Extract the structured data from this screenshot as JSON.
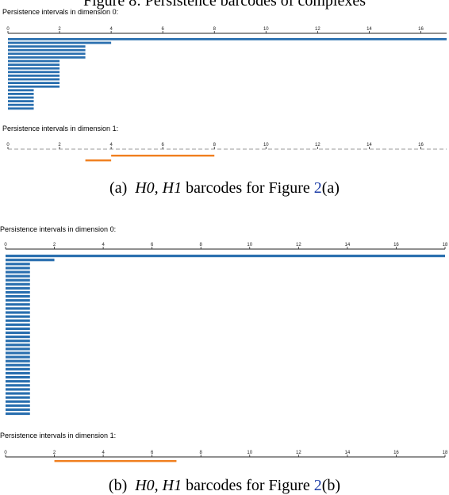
{
  "top_clipped_text": "Figure 8: Persistence barcodes of complexes",
  "panel_a": {
    "caption_label": "(a)",
    "caption_math": "H0, H1",
    "caption_text": "barcodes for Figure",
    "caption_ref": "2",
    "caption_suffix": "(a)"
  },
  "panel_b": {
    "caption_label": "(b)",
    "caption_math": "H0, H1",
    "caption_text": "barcodes for Figure",
    "caption_ref": "2",
    "caption_suffix": "(b)"
  },
  "chart_data": [
    {
      "type": "bar",
      "title": "Persistence intervals in dimension 0:",
      "xlim": [
        0,
        17
      ],
      "ticks": [
        "0",
        "2",
        "4",
        "6",
        "8",
        "10",
        "12",
        "14",
        "16"
      ],
      "color": "#2a6faf",
      "bars": [
        [
          0,
          17
        ],
        [
          0,
          4
        ],
        [
          0,
          3
        ],
        [
          0,
          3
        ],
        [
          0,
          3
        ],
        [
          0,
          3
        ],
        [
          0,
          2
        ],
        [
          0,
          2
        ],
        [
          0,
          2
        ],
        [
          0,
          2
        ],
        [
          0,
          2
        ],
        [
          0,
          2
        ],
        [
          0,
          2
        ],
        [
          0,
          2
        ],
        [
          0,
          1
        ],
        [
          0,
          1
        ],
        [
          0,
          1
        ],
        [
          0,
          1
        ],
        [
          0,
          1
        ],
        [
          0,
          1
        ]
      ]
    },
    {
      "type": "bar",
      "title": "Persistence intervals in dimension 1:",
      "xlim": [
        0,
        17
      ],
      "ticks": [
        "0",
        "2",
        "4",
        "6",
        "8",
        "10",
        "12",
        "14",
        "16"
      ],
      "color": "#f07f1f",
      "bars": [
        [
          4,
          8
        ],
        [
          3,
          4
        ]
      ]
    },
    {
      "type": "bar",
      "title": "Persistence intervals in dimension 0:",
      "xlim": [
        0,
        18
      ],
      "ticks": [
        "0",
        "2",
        "4",
        "6",
        "8",
        "10",
        "12",
        "14",
        "16",
        "18"
      ],
      "color": "#2a6faf",
      "bars": [
        [
          0,
          18
        ],
        [
          0,
          2
        ],
        [
          0,
          1
        ],
        [
          0,
          1
        ],
        [
          0,
          1
        ],
        [
          0,
          1
        ],
        [
          0,
          1
        ],
        [
          0,
          1
        ],
        [
          0,
          1
        ],
        [
          0,
          1
        ],
        [
          0,
          1
        ],
        [
          0,
          1
        ],
        [
          0,
          1
        ],
        [
          0,
          1
        ],
        [
          0,
          1
        ],
        [
          0,
          1
        ],
        [
          0,
          1
        ],
        [
          0,
          1
        ],
        [
          0,
          1
        ],
        [
          0,
          1
        ],
        [
          0,
          1
        ],
        [
          0,
          1
        ],
        [
          0,
          1
        ],
        [
          0,
          1
        ],
        [
          0,
          1
        ],
        [
          0,
          1
        ],
        [
          0,
          1
        ],
        [
          0,
          1
        ],
        [
          0,
          1
        ],
        [
          0,
          1
        ],
        [
          0,
          1
        ],
        [
          0,
          1
        ],
        [
          0,
          1
        ],
        [
          0,
          1
        ],
        [
          0,
          1
        ],
        [
          0,
          1
        ],
        [
          0,
          1
        ],
        [
          0,
          1
        ],
        [
          0,
          1
        ],
        [
          0,
          1
        ]
      ]
    },
    {
      "type": "bar",
      "title": "Persistence intervals in dimension 1:",
      "xlim": [
        0,
        18
      ],
      "ticks": [
        "0",
        "2",
        "4",
        "6",
        "8",
        "10",
        "12",
        "14",
        "16",
        "18"
      ],
      "color": "#f07f1f",
      "bars": [
        [
          2,
          7
        ]
      ]
    }
  ]
}
